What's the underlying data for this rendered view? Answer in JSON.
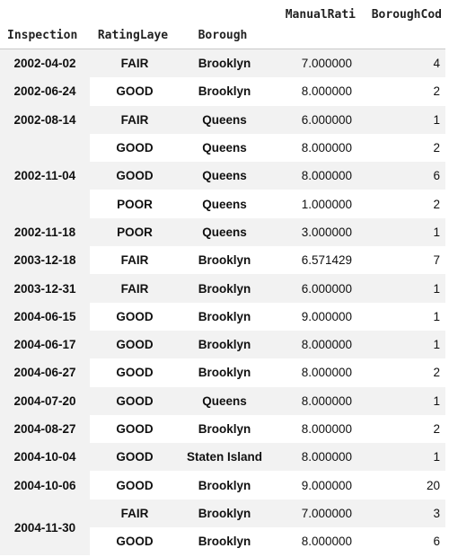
{
  "table": {
    "header_top": [
      "",
      "",
      "",
      "ManualRati",
      "BoroughCod"
    ],
    "header_bottom": [
      "Inspection",
      "RatingLaye",
      "Borough",
      "",
      ""
    ],
    "rows": [
      {
        "date": "2002-04-02",
        "rating": "FAIR",
        "borough": "Brooklyn",
        "manual": "7.000000",
        "code": "4",
        "date_span": 1
      },
      {
        "date": "2002-06-24",
        "rating": "GOOD",
        "borough": "Brooklyn",
        "manual": "8.000000",
        "code": "2",
        "date_span": 1
      },
      {
        "date": "2002-08-14",
        "rating": "FAIR",
        "borough": "Queens",
        "manual": "6.000000",
        "code": "1",
        "date_span": 1
      },
      {
        "date": "2002-11-04",
        "rating": "GOOD",
        "borough": "Queens",
        "manual": "8.000000",
        "code": "2",
        "date_span": 3
      },
      {
        "date": "",
        "rating": "GOOD",
        "borough": "Queens",
        "manual": "8.000000",
        "code": "6",
        "date_span": 0
      },
      {
        "date": "",
        "rating": "POOR",
        "borough": "Queens",
        "manual": "1.000000",
        "code": "2",
        "date_span": 0
      },
      {
        "date": "2002-11-18",
        "rating": "POOR",
        "borough": "Queens",
        "manual": "3.000000",
        "code": "1",
        "date_span": 1
      },
      {
        "date": "2003-12-18",
        "rating": "FAIR",
        "borough": "Brooklyn",
        "manual": "6.571429",
        "code": "7",
        "date_span": 1
      },
      {
        "date": "2003-12-31",
        "rating": "FAIR",
        "borough": "Brooklyn",
        "manual": "6.000000",
        "code": "1",
        "date_span": 1
      },
      {
        "date": "2004-06-15",
        "rating": "GOOD",
        "borough": "Brooklyn",
        "manual": "9.000000",
        "code": "1",
        "date_span": 1
      },
      {
        "date": "2004-06-17",
        "rating": "GOOD",
        "borough": "Brooklyn",
        "manual": "8.000000",
        "code": "1",
        "date_span": 1
      },
      {
        "date": "2004-06-27",
        "rating": "GOOD",
        "borough": "Brooklyn",
        "manual": "8.000000",
        "code": "2",
        "date_span": 1
      },
      {
        "date": "2004-07-20",
        "rating": "GOOD",
        "borough": "Queens",
        "manual": "8.000000",
        "code": "1",
        "date_span": 1
      },
      {
        "date": "2004-08-27",
        "rating": "GOOD",
        "borough": "Brooklyn",
        "manual": "8.000000",
        "code": "2",
        "date_span": 1
      },
      {
        "date": "2004-10-04",
        "rating": "GOOD",
        "borough": "Staten Island",
        "manual": "8.000000",
        "code": "1",
        "date_span": 1
      },
      {
        "date": "2004-10-06",
        "rating": "GOOD",
        "borough": "Brooklyn",
        "manual": "9.000000",
        "code": "20",
        "date_span": 1
      },
      {
        "date": "2004-11-30",
        "rating": "FAIR",
        "borough": "Brooklyn",
        "manual": "7.000000",
        "code": "3",
        "date_span": 2
      },
      {
        "date": "",
        "rating": "GOOD",
        "borough": "Brooklyn",
        "manual": "8.000000",
        "code": "6",
        "date_span": 0
      }
    ]
  },
  "colors": {
    "stripe": "#f2f2f2",
    "header_border": "#c8c8c8",
    "text": "#111111"
  }
}
